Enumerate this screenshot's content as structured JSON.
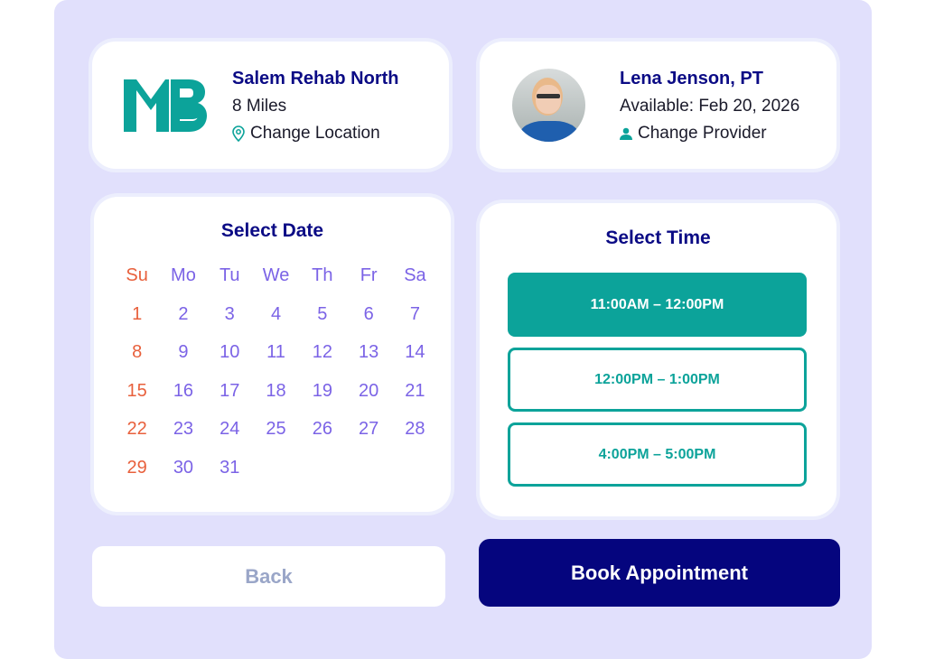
{
  "location": {
    "logo_text": "MB",
    "name": "Salem Rehab North",
    "distance": "8 Miles",
    "change_label": "Change Location"
  },
  "provider": {
    "name": "Lena Jenson, PT",
    "availability": "Available: Feb 20, 2026",
    "change_label": "Change Provider"
  },
  "calendar": {
    "title": "Select Date",
    "weekdays": [
      "Su",
      "Mo",
      "Tu",
      "We",
      "Th",
      "Fr",
      "Sa"
    ],
    "days": [
      1,
      2,
      3,
      4,
      5,
      6,
      7,
      8,
      9,
      10,
      11,
      12,
      13,
      14,
      15,
      16,
      17,
      18,
      19,
      20,
      21,
      22,
      23,
      24,
      25,
      26,
      27,
      28,
      29,
      30,
      31
    ]
  },
  "time": {
    "title": "Select Time",
    "slots": [
      {
        "label": "11:00AM – 12:00PM",
        "selected": true
      },
      {
        "label": "12:00PM – 1:00PM",
        "selected": false
      },
      {
        "label": "4:00PM – 5:00PM",
        "selected": false
      }
    ]
  },
  "actions": {
    "back": "Back",
    "book": "Book Appointment"
  },
  "colors": {
    "navy": "#0b0b85",
    "teal": "#0ca39a",
    "weekday": "#7b63e6",
    "sunday": "#e8603c",
    "background": "#e1e0fc"
  }
}
